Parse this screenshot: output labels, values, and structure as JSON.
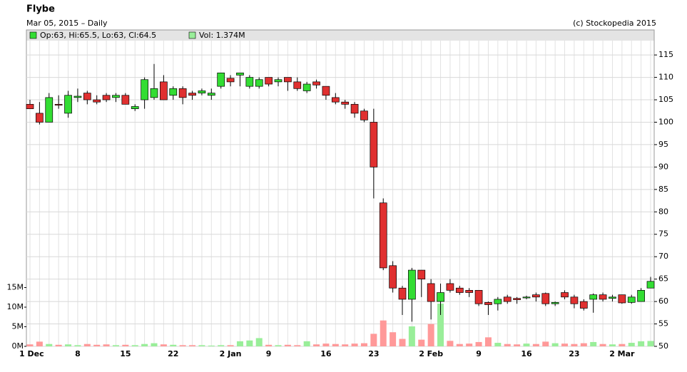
{
  "chart_data": {
    "type": "candlestick",
    "title": "Flybe",
    "subtitle": "Mar 05, 2015 – Daily",
    "source": "(c) Stockopedia 2015",
    "legend": [
      "Op:63, Hi:65.5, Lo:63, Cl:64.5",
      "Vol: 1.374M"
    ],
    "up_color": "#33dd33",
    "down_color": "#e03030",
    "up_volume_color": "#99ee99",
    "down_volume_color": "#ff9999",
    "grid": true,
    "categories": [
      "1 Dec",
      null,
      null,
      null,
      null,
      "8",
      null,
      null,
      null,
      null,
      "15",
      null,
      null,
      null,
      null,
      "22",
      null,
      null,
      null,
      null,
      null,
      "2 Jan",
      null,
      null,
      null,
      "9",
      null,
      null,
      null,
      null,
      null,
      "16",
      null,
      null,
      null,
      null,
      "23",
      null,
      null,
      null,
      null,
      null,
      "2 Feb",
      null,
      null,
      null,
      null,
      "9",
      null,
      null,
      null,
      null,
      "16",
      null,
      null,
      null,
      null,
      "23",
      null,
      null,
      null,
      null,
      "2 Mar",
      null,
      null,
      null
    ],
    "open": [
      104,
      102,
      100,
      104,
      102,
      105.5,
      106.5,
      105,
      106,
      105.5,
      106,
      103,
      105,
      105.5,
      109,
      106,
      107.5,
      106.5,
      106.5,
      106,
      108,
      109.8,
      110.5,
      108,
      108,
      110,
      109,
      110,
      109,
      107,
      109,
      108,
      105.5,
      104.5,
      104,
      102.5,
      100,
      82,
      68,
      63,
      60.5,
      67,
      64,
      60,
      64,
      63,
      62.5,
      62.5,
      59.8,
      59.5,
      61,
      60.7,
      60.8,
      61.5,
      61.8,
      59.5,
      62,
      61,
      60,
      60.5,
      61.5,
      60.7,
      61.5,
      59.8,
      60,
      63
    ],
    "high": [
      105,
      104.5,
      106.5,
      106,
      107,
      107.5,
      107,
      106,
      106.5,
      106.5,
      106.5,
      104,
      110,
      113,
      110.5,
      108,
      108,
      107,
      107.5,
      107.5,
      111,
      110.5,
      111,
      110.5,
      110,
      110,
      110,
      110,
      110,
      109,
      109.5,
      108,
      106.5,
      105,
      104.5,
      103,
      103,
      83,
      69,
      63.5,
      67.5,
      67,
      65,
      64,
      65,
      63.5,
      63,
      62.5,
      60,
      61,
      61.5,
      61,
      61.3,
      62,
      62,
      60,
      62.5,
      61.5,
      60.5,
      61.8,
      62,
      61.5,
      61.5,
      61.5,
      63,
      65.5
    ],
    "low": [
      103,
      99.5,
      100,
      103,
      101,
      104.5,
      104,
      104,
      104.5,
      104.5,
      104,
      102.5,
      103,
      105,
      105,
      105,
      104,
      105,
      106,
      105,
      107.5,
      108,
      108,
      107.5,
      107.5,
      108,
      108,
      107,
      107,
      106.5,
      107.5,
      105,
      104,
      103,
      101,
      100,
      83,
      67,
      62,
      57,
      55.5,
      61,
      56,
      57,
      62,
      61.5,
      61,
      59,
      57,
      58,
      59.5,
      59.5,
      60.5,
      60,
      59,
      59,
      60.5,
      58.5,
      58,
      57.5,
      60,
      60,
      59.5,
      59.5,
      60,
      63
    ],
    "close": [
      103,
      100,
      105.5,
      103.8,
      106,
      105.8,
      105,
      104.5,
      105,
      106,
      104,
      103.5,
      109.5,
      107.5,
      105,
      107.5,
      105.5,
      106,
      107,
      106.5,
      111,
      109,
      111,
      110,
      109.5,
      108.5,
      109.5,
      109,
      107.5,
      108.5,
      108.3,
      106,
      104.5,
      104,
      102,
      100.5,
      90,
      67.5,
      63,
      60.5,
      67,
      65,
      60,
      62,
      62.5,
      62,
      62,
      59.5,
      59.3,
      60.5,
      60,
      60.4,
      61,
      61,
      59.5,
      59.8,
      61,
      59.5,
      58.5,
      61.5,
      60.5,
      61,
      59.7,
      61,
      62.5,
      64.5
    ],
    "volume": [
      0.5,
      1.2,
      0.6,
      0.4,
      0.5,
      0.3,
      0.6,
      0.4,
      0.5,
      0.3,
      0.4,
      0.3,
      0.6,
      0.8,
      0.5,
      0.4,
      0.3,
      0.3,
      0.3,
      0.2,
      0.3,
      0.3,
      1.3,
      1.5,
      2.1,
      0.4,
      0.3,
      0.4,
      0.3,
      1.3,
      0.5,
      0.7,
      0.6,
      0.5,
      0.7,
      0.8,
      3.2,
      6.6,
      3.6,
      1.9,
      5.1,
      1.7,
      5.7,
      10.9,
      1.4,
      0.6,
      0.7,
      1.1,
      2.3,
      0.9,
      0.6,
      0.5,
      0.7,
      0.6,
      1.2,
      0.8,
      0.7,
      0.6,
      0.8,
      1.1,
      0.6,
      0.5,
      0.6,
      0.9,
      1.3,
      1.374
    ],
    "ylim": [
      50,
      118.2
    ],
    "yticks": [
      50,
      55,
      60,
      65,
      70,
      75,
      80,
      85,
      90,
      95,
      100,
      105,
      110,
      115
    ],
    "volume_lim": [
      0,
      78
    ],
    "volume_ticks": [
      {
        "value": 0,
        "label": "0M"
      },
      {
        "value": 5,
        "label": "5M"
      },
      {
        "value": 10,
        "label": "10M"
      },
      {
        "value": 15,
        "label": "15M"
      }
    ]
  }
}
